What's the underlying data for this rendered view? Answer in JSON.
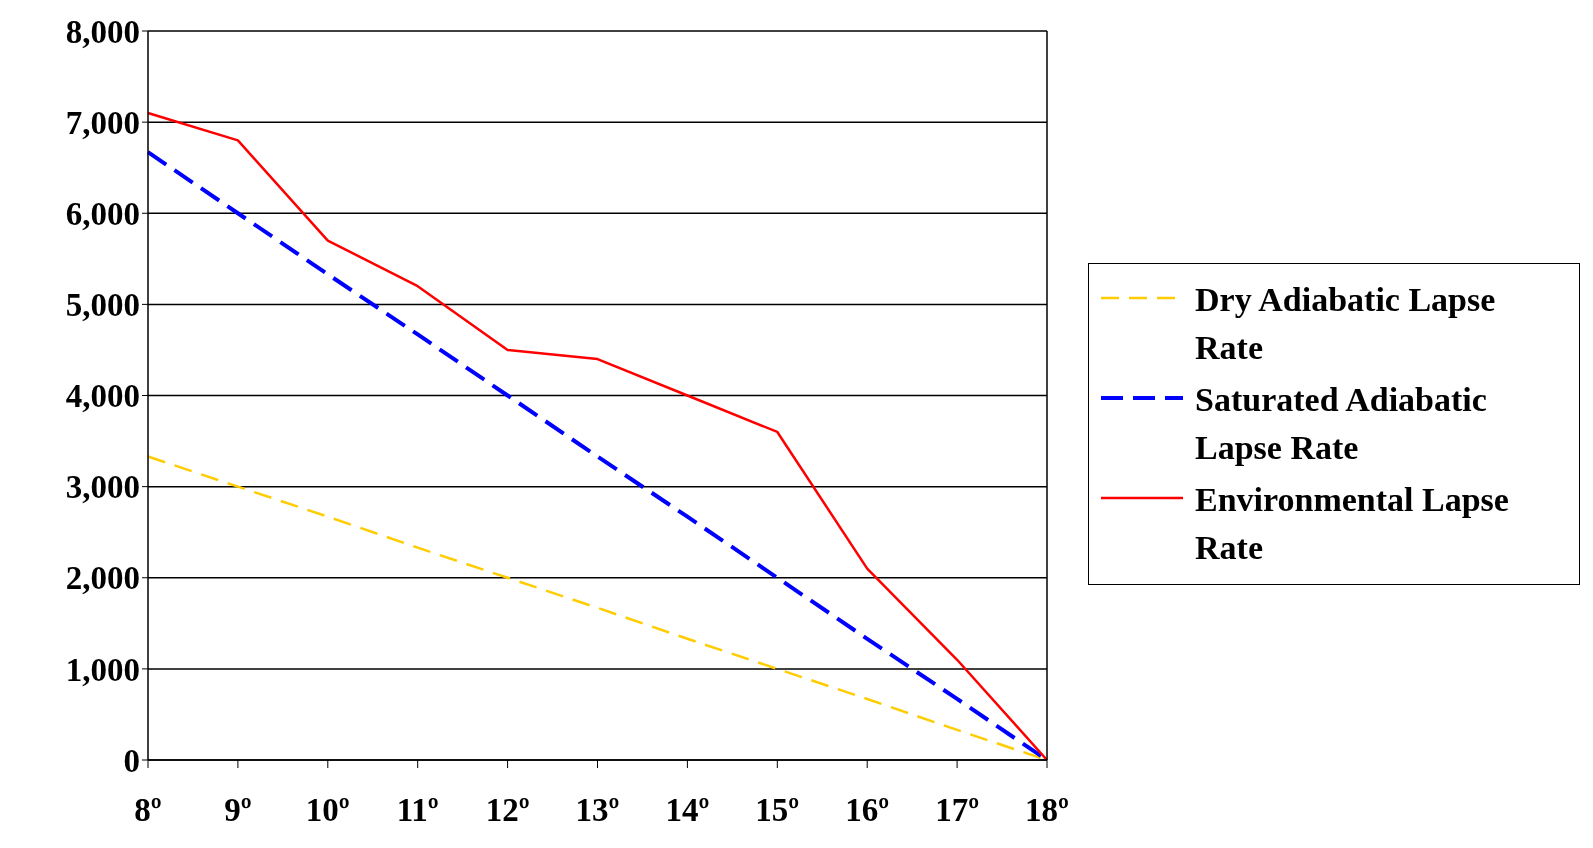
{
  "chart_data": {
    "type": "line",
    "categories": [
      "8º",
      "9º",
      "10º",
      "11º",
      "12º",
      "13º",
      "14º",
      "15º",
      "16º",
      "17º",
      "18º"
    ],
    "series": [
      {
        "name": "Dry Adiabatic Lapse Rate",
        "color": "#ffcc00",
        "line_style": "dashed",
        "values": [
          3330,
          3000,
          2670,
          2330,
          2000,
          1670,
          1330,
          1000,
          670,
          330,
          0
        ]
      },
      {
        "name": "Saturated Adiabatic Lapse Rate",
        "color": "#0000ff",
        "line_style": "dashed",
        "values": [
          6670,
          6000,
          5330,
          4670,
          4000,
          3330,
          2670,
          2000,
          1330,
          670,
          0
        ]
      },
      {
        "name": "Environmental Lapse Rate",
        "color": "#ff0000",
        "line_style": "solid",
        "values": [
          7100,
          6800,
          5700,
          5200,
          4500,
          4400,
          4000,
          3600,
          2100,
          1100,
          0
        ]
      }
    ],
    "ylim": [
      0,
      8000
    ],
    "yticks": [
      0,
      {
        "value": 1000,
        "label": "1,000"
      },
      {
        "value": 2000,
        "label": "2,000"
      },
      {
        "value": 3000,
        "label": "3,000"
      },
      {
        "value": 4000,
        "label": "4,000"
      },
      {
        "value": 5000,
        "label": "5,000"
      },
      {
        "value": 6000,
        "label": "6,000"
      },
      {
        "value": 7000,
        "label": "7,000"
      },
      {
        "value": 8000,
        "label": "8,000"
      }
    ],
    "grid": "y",
    "legend": "right",
    "marker": "none"
  }
}
